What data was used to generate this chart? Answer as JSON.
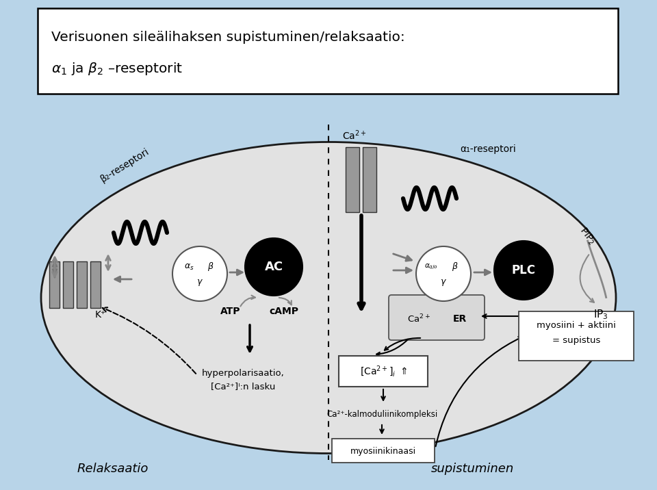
{
  "bg_color": "#b8d4e8",
  "title_line1": "Verisuonen sileälihaksen supistuminen/relaksaatio:",
  "title_line2": "α₁ ja β₂ –reseptorit",
  "label_relaksaatio": "Relaksaatio",
  "label_supistuminen": "supistuminen",
  "label_beta2": "β₂-reseptori",
  "label_alpha1": "α₁-reseptori",
  "label_ac": "AC",
  "label_plc": "PLC",
  "label_atp": "ATP",
  "label_camp": "cAMP",
  "label_hyper1": "hyperpolarisaatio,",
  "label_hyper2": "[Ca²⁺]ᴵ:n lasku",
  "label_kalmod": "Ca²⁺-kalmoduliinikompleksi",
  "label_myos_kin": "myosiinikinaasi",
  "label_myosiini1": "myosiini + aktiini",
  "label_myosiini2": "= supistus",
  "label_k_plus": "K⁺"
}
